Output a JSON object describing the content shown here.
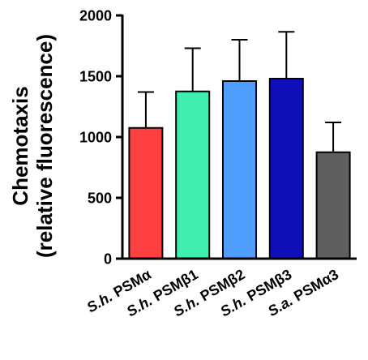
{
  "chart_data": {
    "type": "bar",
    "ylabel_line1": "Chemotaxis",
    "ylabel_line2": "(relative fluorescence)",
    "xlabel": "",
    "ylim": [
      0,
      2000
    ],
    "yticks": [
      "0",
      "500",
      "1000",
      "1500",
      "2000"
    ],
    "tick_values": [
      0,
      500,
      1000,
      1500,
      2000
    ],
    "categories": [
      {
        "prefix": "S.h.",
        "suffix": " PSMα",
        "value": 1075,
        "error": 295,
        "color": "#ff4040"
      },
      {
        "prefix": "S.h.",
        "suffix": " PSMβ1",
        "value": 1375,
        "error": 355,
        "color": "#40eeb0"
      },
      {
        "prefix": "S.h.",
        "suffix": " PSMβ2",
        "value": 1460,
        "error": 340,
        "color": "#4f9cff"
      },
      {
        "prefix": "S.h.",
        "suffix": " PSMβ3",
        "value": 1480,
        "error": 385,
        "color": "#0f10b8"
      },
      {
        "prefix": "S.a.",
        "suffix": " PSMα3",
        "value": 875,
        "error": 245,
        "color": "#5f5f5f"
      }
    ]
  }
}
